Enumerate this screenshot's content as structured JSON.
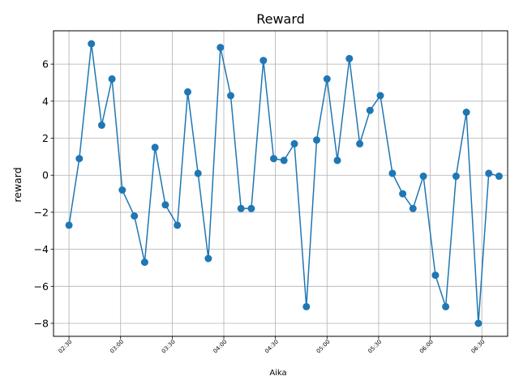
{
  "chart_data": {
    "type": "line",
    "title": "Reward",
    "xlabel": "Aika",
    "ylabel": "reward",
    "ylim": [
      -8.7,
      7.8
    ],
    "yticks": [
      -8,
      -6,
      -4,
      -2,
      0,
      2,
      4,
      6
    ],
    "xlim": [
      "02:21",
      "06:45"
    ],
    "xticks": [
      "02:30",
      "03:00",
      "03:30",
      "04:00",
      "04:30",
      "05:00",
      "05:30",
      "06:00",
      "06:30"
    ],
    "grid": true,
    "line_color": "#1f77b4",
    "marker": "circle",
    "series": [
      {
        "x": [
          "02:30",
          "02:36",
          "02:43",
          "02:49",
          "02:55",
          "03:01",
          "03:08",
          "03:14",
          "03:20",
          "03:26",
          "03:33",
          "03:39",
          "03:45",
          "03:51",
          "03:58",
          "04:04",
          "04:10",
          "04:16",
          "04:23",
          "04:29",
          "04:35",
          "04:41",
          "04:48",
          "04:54",
          "05:00",
          "05:06",
          "05:13",
          "05:19",
          "05:25",
          "05:31",
          "05:38",
          "05:44",
          "05:50",
          "05:56",
          "06:03",
          "06:09",
          "06:15",
          "06:21",
          "06:28",
          "06:34",
          "06:40"
        ],
        "values": [
          -2.7,
          0.9,
          7.1,
          2.7,
          5.2,
          -0.8,
          -2.2,
          -4.7,
          1.5,
          -1.6,
          -2.7,
          4.5,
          0.1,
          -4.5,
          6.9,
          4.3,
          -1.8,
          -1.8,
          6.2,
          0.9,
          0.8,
          1.7,
          -7.1,
          1.9,
          5.2,
          0.8,
          6.3,
          1.7,
          3.5,
          4.3,
          0.1,
          -1.0,
          -1.8,
          -0.05,
          -5.4,
          -7.1,
          -0.05,
          3.4,
          -8.0,
          0.1,
          -0.05
        ]
      }
    ]
  }
}
